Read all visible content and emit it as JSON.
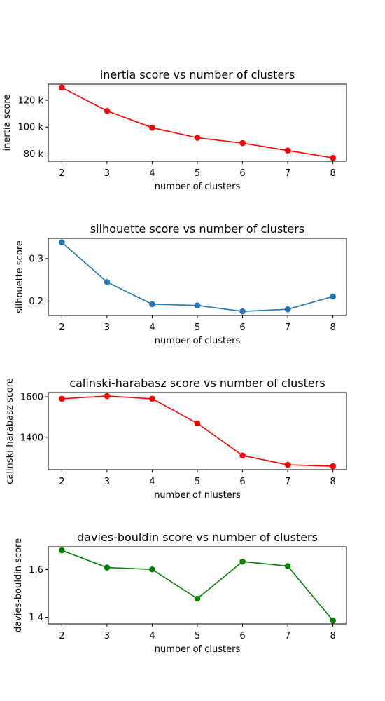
{
  "chart_data": [
    {
      "type": "line",
      "title": "inertia score vs number of clusters",
      "xlabel": "number of clusters",
      "ylabel": "inertia score",
      "x": [
        2,
        3,
        4,
        5,
        6,
        7,
        8
      ],
      "values": [
        129500,
        112000,
        99500,
        92000,
        88000,
        82500,
        77000
      ],
      "color": "#ff0000",
      "xlim": [
        1.7,
        8.3
      ],
      "ylim": [
        74500,
        132000
      ],
      "xticks": [
        2,
        3,
        4,
        5,
        6,
        7,
        8
      ],
      "yticks": [
        80000,
        100000,
        120000
      ],
      "yticklabels": [
        "80 k",
        "100 k",
        "120 k"
      ],
      "grid": false
    },
    {
      "type": "line",
      "title": "silhouette score vs number of clusters",
      "xlabel": "number of clusters",
      "ylabel": "silhouette score",
      "x": [
        2,
        3,
        4,
        5,
        6,
        7,
        8
      ],
      "values": [
        0.338,
        0.245,
        0.193,
        0.19,
        0.176,
        0.181,
        0.211
      ],
      "color": "#1f77b4",
      "xlim": [
        1.7,
        8.3
      ],
      "ylim": [
        0.1665,
        0.3475
      ],
      "xticks": [
        2,
        3,
        4,
        5,
        6,
        7,
        8
      ],
      "yticks": [
        0.2,
        0.3
      ],
      "yticklabels": [
        "0.2",
        "0.3"
      ],
      "grid": false
    },
    {
      "type": "line",
      "title": "calinski-harabasz score vs number of clusters",
      "xlabel": "number of nlusters",
      "ylabel": "calinski-harabasz score",
      "x": [
        2,
        3,
        4,
        5,
        6,
        7,
        8
      ],
      "values": [
        1590,
        1604,
        1590,
        1469,
        1310,
        1264,
        1257
      ],
      "color": "#ff0000",
      "xlim": [
        1.7,
        8.3
      ],
      "ylim": [
        1240,
        1621
      ],
      "xticks": [
        2,
        3,
        4,
        5,
        6,
        7,
        8
      ],
      "yticks": [
        1400,
        1600
      ],
      "yticklabels": [
        "1400",
        "1600"
      ],
      "grid": false
    },
    {
      "type": "line",
      "title": "davies-bouldin score vs number of clusters",
      "xlabel": "number of clusters",
      "ylabel": "davies-bouldin score",
      "x": [
        2,
        3,
        4,
        5,
        6,
        7,
        8
      ],
      "values": [
        1.681,
        1.609,
        1.601,
        1.478,
        1.634,
        1.615,
        1.386
      ],
      "color": "#008000",
      "xlim": [
        1.7,
        8.3
      ],
      "ylim": [
        1.372,
        1.696
      ],
      "xticks": [
        2,
        3,
        4,
        5,
        6,
        7,
        8
      ],
      "yticks": [
        1.4,
        1.6
      ],
      "yticklabels": [
        "1.4",
        "1.6"
      ],
      "grid": false
    }
  ]
}
